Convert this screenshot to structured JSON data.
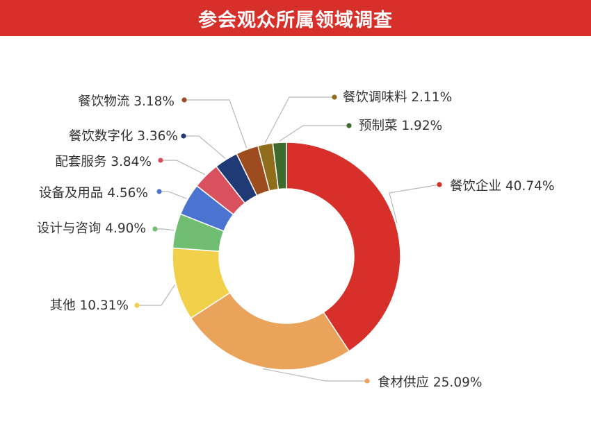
{
  "chart_data": {
    "type": "pie",
    "title": "参会观众所属领域调查",
    "hole": true,
    "legend": "none",
    "unit": "%",
    "slices": [
      {
        "label": "餐饮企业",
        "value": 40.74,
        "display": "40.74%",
        "color": "#d7302a"
      },
      {
        "label": "食材供应",
        "value": 25.09,
        "display": "25.09%",
        "color": "#e9a35b"
      },
      {
        "label": "其他",
        "value": 10.31,
        "display": "10.31%",
        "color": "#f2d14a"
      },
      {
        "label": "设计与咨询",
        "value": 4.9,
        "display": "4.90%",
        "color": "#6fbe72"
      },
      {
        "label": "设备及用品",
        "value": 4.56,
        "display": "4.56%",
        "color": "#4a74d0"
      },
      {
        "label": "配套服务",
        "value": 3.84,
        "display": "3.84%",
        "color": "#d9505e"
      },
      {
        "label": "餐饮数字化",
        "value": 3.36,
        "display": "3.36%",
        "color": "#1f3a74"
      },
      {
        "label": "餐饮物流",
        "value": 3.18,
        "display": "3.18%",
        "color": "#9c4c1e"
      },
      {
        "label": "餐饮调味料",
        "value": 2.11,
        "display": "2.11%",
        "color": "#8f6d1a"
      },
      {
        "label": "预制菜",
        "value": 1.92,
        "display": "1.92%",
        "color": "#3e6b2c"
      }
    ]
  }
}
